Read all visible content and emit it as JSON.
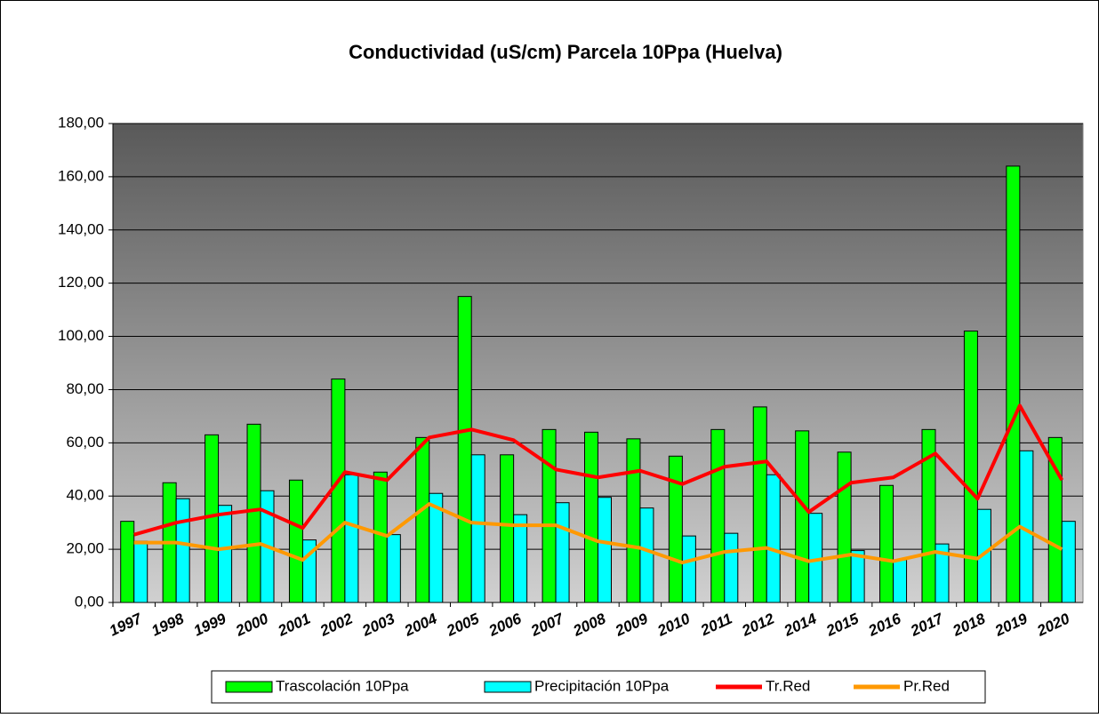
{
  "chart_data": {
    "type": "bar_line",
    "title": "Conductividad (uS/cm) Parcela 10Ppa (Huelva)",
    "categories": [
      "1997",
      "1998",
      "1999",
      "2000",
      "2001",
      "2002",
      "2003",
      "2004",
      "2005",
      "2006",
      "2007",
      "2008",
      "2009",
      "2010",
      "2011",
      "2012",
      "2014",
      "2015",
      "2016",
      "2017",
      "2018",
      "2019",
      "2020"
    ],
    "series": [
      {
        "name": "Trascolación  10Ppa",
        "kind": "bar",
        "color": "#00ff00",
        "values": [
          30.5,
          45,
          63,
          67,
          46,
          84,
          49,
          62,
          115,
          55.5,
          65,
          64,
          61.5,
          55,
          65,
          73.5,
          64.5,
          56.5,
          44,
          65,
          102,
          164,
          62
        ]
      },
      {
        "name": "Precipitación 10Ppa",
        "kind": "bar",
        "color": "#00ffff",
        "values": [
          23,
          39,
          36.5,
          42,
          23.5,
          48,
          25.5,
          41,
          55.5,
          33,
          37.5,
          39.5,
          35.5,
          25,
          26,
          48,
          33.5,
          19.5,
          16,
          22,
          35,
          57,
          30.5
        ]
      },
      {
        "name": "Tr.Red",
        "kind": "line",
        "color": "#ff0000",
        "values": [
          25.5,
          30,
          33,
          35,
          28,
          49,
          46,
          62,
          65,
          61,
          50,
          47,
          49.5,
          44.5,
          51,
          53,
          34,
          45,
          47,
          56,
          39,
          74,
          46
        ]
      },
      {
        "name": "Pr.Red",
        "kind": "line",
        "color": "#ff9900",
        "values": [
          22.5,
          22.5,
          20,
          22,
          16,
          30,
          25,
          37,
          30,
          29,
          29,
          23,
          20.5,
          15,
          19,
          20.5,
          15.5,
          18,
          15.5,
          19,
          16.5,
          28.5,
          20
        ]
      }
    ],
    "ylim": [
      0,
      180
    ],
    "yticks": [
      {
        "value": 0,
        "label": "0,00"
      },
      {
        "value": 20,
        "label": "20,00"
      },
      {
        "value": 40,
        "label": "40,00"
      },
      {
        "value": 60,
        "label": "60,00"
      },
      {
        "value": 80,
        "label": "80,00"
      },
      {
        "value": 100,
        "label": "100,00"
      },
      {
        "value": 120,
        "label": "120,00"
      },
      {
        "value": 140,
        "label": "140,00"
      },
      {
        "value": 160,
        "label": "160,00"
      },
      {
        "value": 180,
        "label": "180,00"
      }
    ],
    "grid": true,
    "legend": "bottom"
  }
}
